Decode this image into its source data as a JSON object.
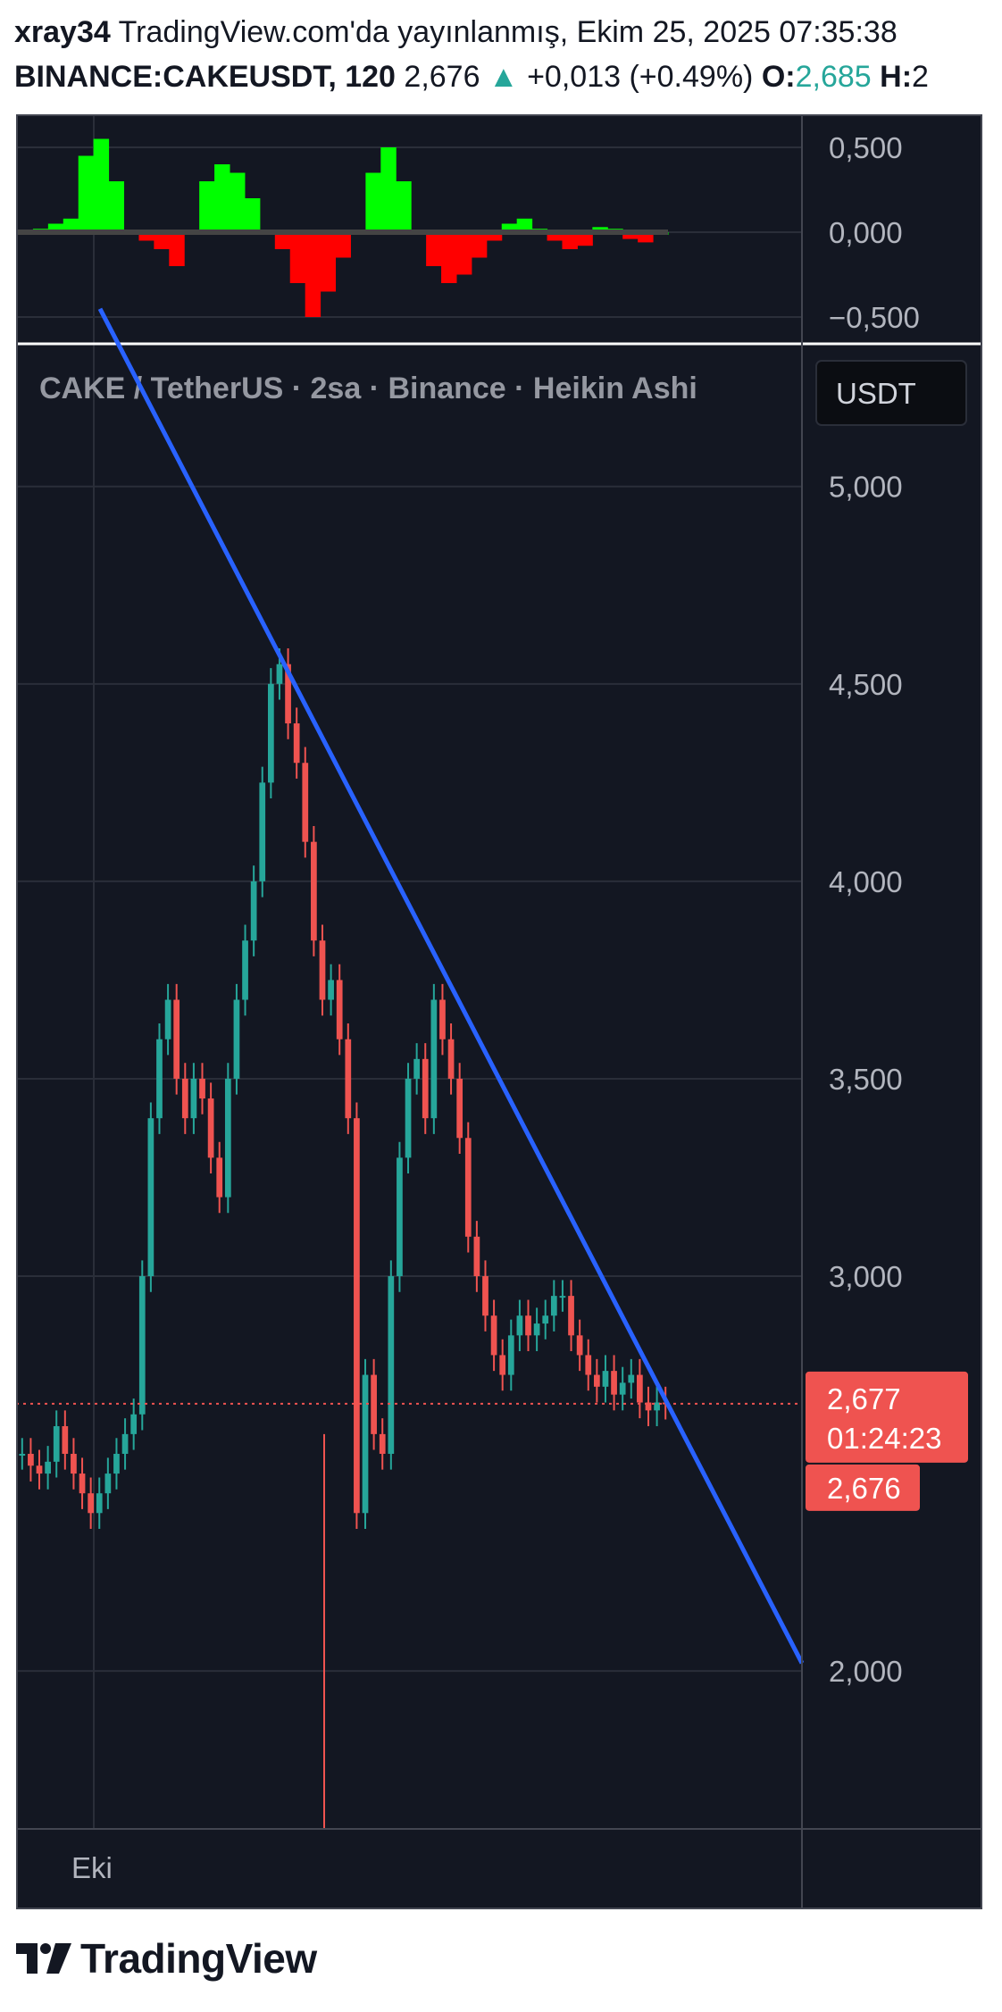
{
  "header": {
    "author": "xray34",
    "published": "TradingView.com'da yayınlanmış, Ekim 25, 2025 07:35:38",
    "symbol": "BINANCE:CAKEUSDT, 120",
    "price": "2,676",
    "change_arrow": "▲",
    "change": "+0,013 (+0.49%)",
    "open_label": "O:",
    "open_value": "2,685",
    "high_label": "H:",
    "high_value": "2"
  },
  "chart_data": [
    {
      "type": "bar",
      "title": "",
      "panel": "oscillator",
      "ylim": [
        -0.6,
        0.6
      ],
      "yticks": [
        "0,500",
        "0,000",
        "−0,500"
      ],
      "ytick_values": [
        0.5,
        0.0,
        -0.5
      ],
      "series": [
        {
          "color": "#00ff00",
          "values": [
            0.0,
            0.02,
            0.05,
            0.08,
            0.45,
            0.55,
            0.3,
            0.0,
            -0.05,
            -0.1,
            -0.2,
            0.0,
            0.3,
            0.4,
            0.35,
            0.2,
            0.0,
            -0.1,
            -0.3,
            -0.5,
            -0.35,
            -0.15,
            0.0,
            0.35,
            0.5,
            0.3,
            0.0,
            -0.2,
            -0.3,
            -0.25,
            -0.15,
            -0.05,
            0.05,
            0.08,
            0.02,
            -0.05,
            -0.1,
            -0.08,
            0.03,
            0.02,
            -0.04,
            -0.06,
            0.0
          ]
        }
      ]
    },
    {
      "type": "line",
      "title": "CAKE / TetherUS · 2sa · Binance · Heikin Ashi",
      "panel": "price",
      "style": "candlestick",
      "ylim": [
        1.6,
        5.35
      ],
      "yticks": [
        "5,000",
        "4,500",
        "4,000",
        "3,500",
        "3,000",
        "2,000"
      ],
      "ytick_values": [
        5.0,
        4.5,
        4.0,
        3.5,
        3.0,
        2.0
      ],
      "xticks": [
        "Eki"
      ],
      "currency": "USDT",
      "series": [
        {
          "name": "",
          "values": [
            2.55,
            2.52,
            2.5,
            2.53,
            2.62,
            2.55,
            2.5,
            2.45,
            2.4,
            2.45,
            2.5,
            2.55,
            2.6,
            2.65,
            3.0,
            3.4,
            3.6,
            3.7,
            3.5,
            3.4,
            3.5,
            3.45,
            3.3,
            3.2,
            3.5,
            3.7,
            3.85,
            4.0,
            4.25,
            4.5,
            4.55,
            4.4,
            4.3,
            4.1,
            3.85,
            3.7,
            3.75,
            3.6,
            3.4,
            2.4,
            2.75,
            2.6,
            2.55,
            3.0,
            3.3,
            3.5,
            3.55,
            3.4,
            3.7,
            3.6,
            3.5,
            3.35,
            3.1,
            3.0,
            2.9,
            2.8,
            2.75,
            2.85,
            2.9,
            2.85,
            2.88,
            2.9,
            2.95,
            2.95,
            2.85,
            2.8,
            2.75,
            2.72,
            2.76,
            2.7,
            2.73,
            2.75,
            2.68,
            2.66,
            2.68,
            2.677
          ]
        },
        {
          "name": "",
          "color": "#2962ff",
          "x": [
            0,
            100
          ],
          "values": [
            5.45,
            2.02
          ]
        }
      ],
      "last_price": "2,677",
      "countdown": "01:24:23",
      "current_price": "2,676",
      "last_price_value": 2.677
    }
  ],
  "colors": {
    "background": "#131722",
    "up": "#26a69a",
    "down": "#ef5350",
    "trendline": "#2962ff",
    "osc_up": "#00ff00",
    "osc_down": "#ff0000",
    "price_label": "#ef5350"
  },
  "footer": {
    "brand": "TradingView"
  }
}
